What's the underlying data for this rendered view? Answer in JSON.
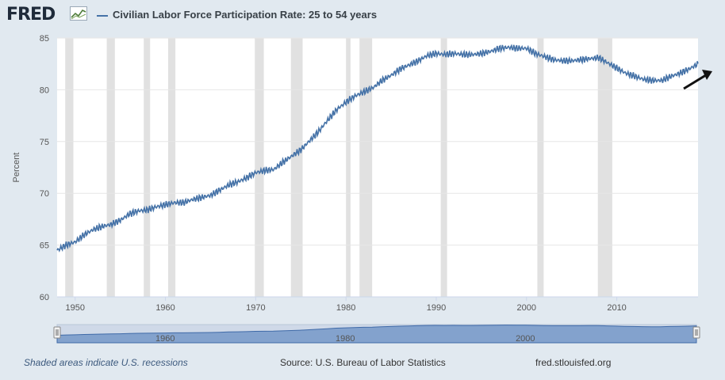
{
  "header": {
    "logo_text": "FRED",
    "logo_icon": "fred-line-chart-icon"
  },
  "legend": {
    "label": "Civilian Labor Force Participation Rate: 25 to 54 years",
    "color": "#4572a7"
  },
  "footer": {
    "note": "Shaded areas indicate U.S. recessions",
    "source": "Source: U.S. Bureau of Labor Statistics",
    "site": "fred.stlouisfed.org"
  },
  "chart_data": {
    "type": "line",
    "title": "Civilian Labor Force Participation Rate: 25 to 54 years",
    "ylabel": "Percent",
    "xlabel": "",
    "xlim": [
      1948,
      2019
    ],
    "ylim": [
      60,
      85
    ],
    "x_ticks": [
      "1950",
      "1960",
      "1970",
      "1980",
      "1990",
      "2000",
      "2010"
    ],
    "y_ticks": [
      "60",
      "65",
      "70",
      "75",
      "80",
      "85"
    ],
    "grid": "horizontal",
    "series": [
      {
        "name": "Civilian Labor Force Participation Rate: 25 to 54 years",
        "color": "#4572a7",
        "x": [
          1948,
          1949,
          1950,
          1951,
          1952,
          1953,
          1954,
          1955,
          1956,
          1957,
          1958,
          1959,
          1960,
          1961,
          1962,
          1963,
          1964,
          1965,
          1966,
          1967,
          1968,
          1969,
          1970,
          1971,
          1972,
          1973,
          1974,
          1975,
          1976,
          1977,
          1978,
          1979,
          1980,
          1981,
          1982,
          1983,
          1984,
          1985,
          1986,
          1987,
          1988,
          1989,
          1990,
          1991,
          1992,
          1993,
          1994,
          1995,
          1996,
          1997,
          1998,
          1999,
          2000,
          2001,
          2002,
          2003,
          2004,
          2005,
          2006,
          2007,
          2008,
          2009,
          2010,
          2011,
          2012,
          2013,
          2014,
          2015,
          2016,
          2017,
          2018,
          2019
        ],
        "values": [
          64.5,
          65.0,
          65.3,
          66.0,
          66.5,
          66.8,
          67.0,
          67.4,
          68.0,
          68.3,
          68.4,
          68.7,
          68.9,
          69.1,
          69.1,
          69.4,
          69.6,
          69.8,
          70.3,
          70.8,
          71.1,
          71.5,
          72.0,
          72.2,
          72.3,
          73.0,
          73.6,
          74.2,
          75.1,
          76.0,
          77.1,
          78.1,
          78.8,
          79.4,
          79.8,
          80.2,
          80.9,
          81.4,
          82.0,
          82.4,
          82.8,
          83.3,
          83.5,
          83.4,
          83.5,
          83.4,
          83.4,
          83.5,
          83.7,
          84.0,
          84.1,
          84.0,
          84.0,
          83.5,
          83.2,
          82.9,
          82.8,
          82.8,
          82.9,
          83.0,
          83.1,
          82.6,
          82.1,
          81.6,
          81.3,
          81.0,
          80.9,
          80.9,
          81.3,
          81.6,
          82.0,
          82.5
        ]
      }
    ],
    "recessions": [
      [
        1948.9,
        1949.8
      ],
      [
        1953.5,
        1954.4
      ],
      [
        1957.6,
        1958.3
      ],
      [
        1960.3,
        1961.1
      ],
      [
        1969.9,
        1970.9
      ],
      [
        1973.9,
        1975.2
      ],
      [
        1980.0,
        1980.5
      ],
      [
        1981.5,
        1982.9
      ],
      [
        1990.5,
        1991.2
      ],
      [
        2001.2,
        2001.9
      ],
      [
        2007.9,
        2009.5
      ]
    ],
    "navigator_ticks": [
      "1960",
      "1980",
      "2000"
    ]
  }
}
